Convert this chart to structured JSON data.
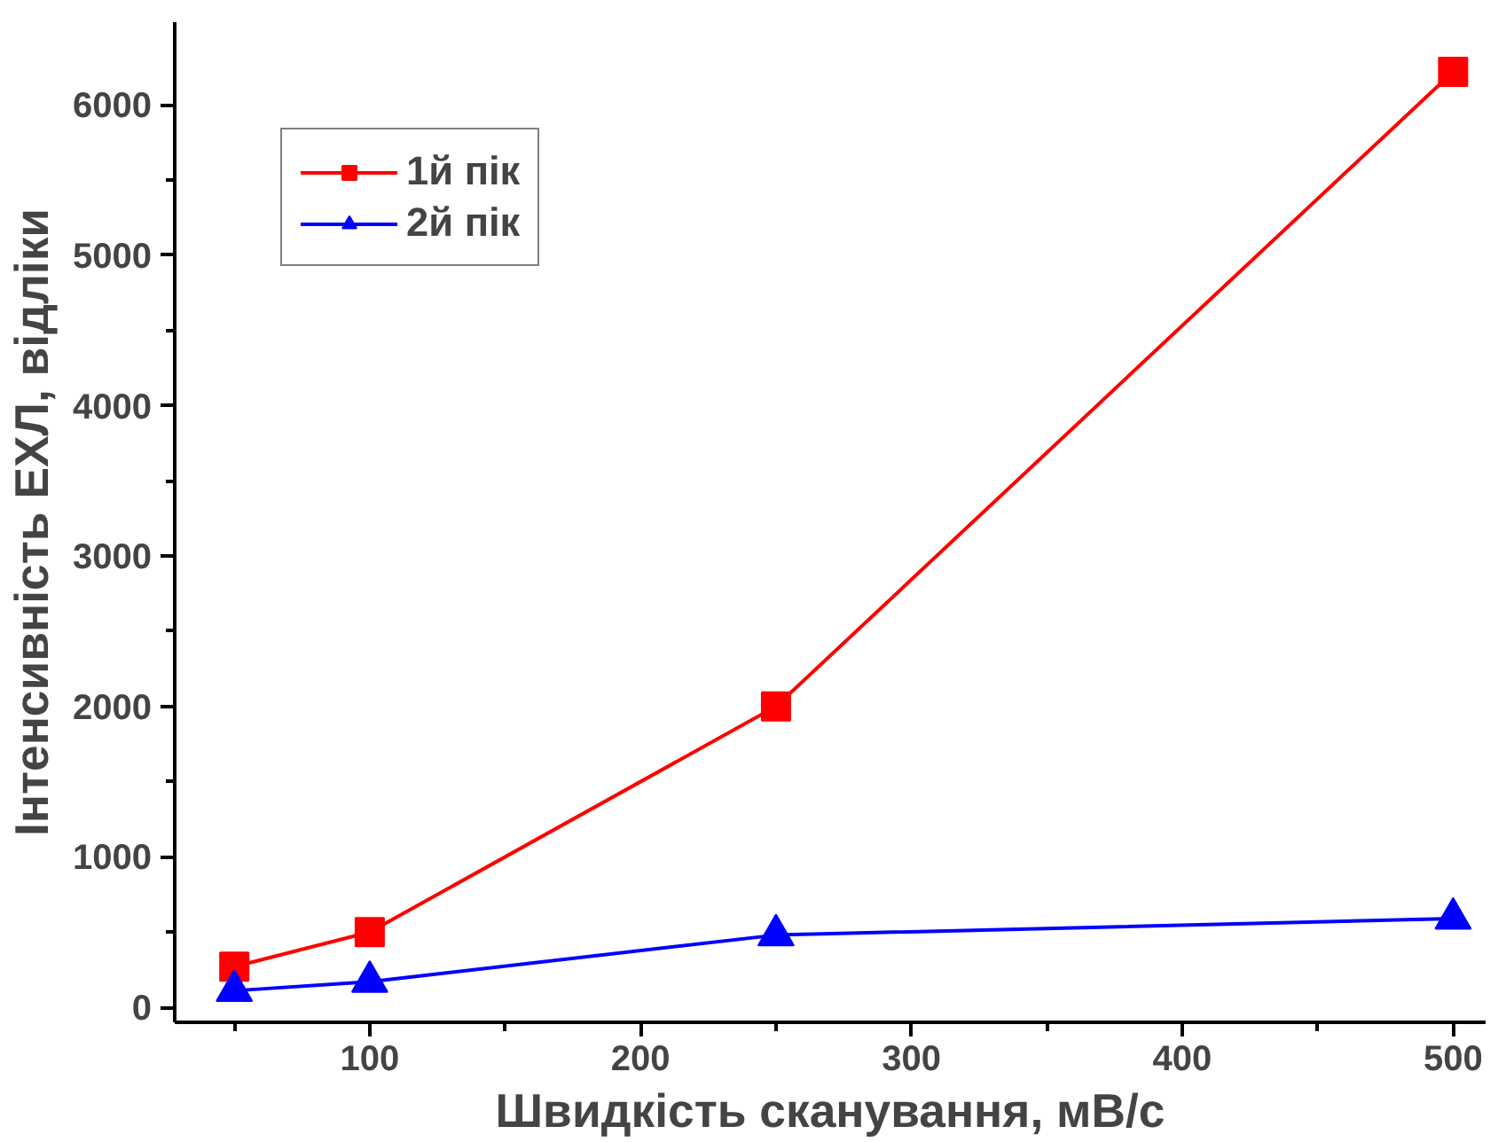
{
  "chart_data": {
    "type": "line",
    "xlabel": "Швидкість сканування, мВ/с",
    "ylabel": "Інтенсивність ЕХЛ, відліки",
    "x": [
      50,
      100,
      250,
      500
    ],
    "series": [
      {
        "name": "1й пік",
        "color": "#ff0000",
        "marker": "square",
        "values": [
          270,
          500,
          2000,
          6220
        ]
      },
      {
        "name": "2й пік",
        "color": "#0000ff",
        "marker": "triangle",
        "values": [
          110,
          170,
          480,
          590
        ]
      }
    ],
    "xlim": [
      28,
      512
    ],
    "ylim": [
      -100,
      6550
    ],
    "xticks": [
      {
        "value": 50,
        "label": null
      },
      100,
      {
        "value": 150,
        "label": null
      },
      200,
      {
        "value": 250,
        "label": null
      },
      300,
      {
        "value": 350,
        "label": null
      },
      400,
      {
        "value": 450,
        "label": null
      },
      500
    ],
    "yticks": [
      0,
      {
        "value": 500,
        "label": null
      },
      1000,
      {
        "value": 1500,
        "label": null
      },
      2000,
      {
        "value": 2500,
        "label": null
      },
      3000,
      {
        "value": 3500,
        "label": null
      },
      4000,
      {
        "value": 4500,
        "label": null
      },
      5000,
      {
        "value": 5500,
        "label": null
      },
      6000
    ],
    "grid": false,
    "legend": "top left",
    "line_style": "solid"
  }
}
